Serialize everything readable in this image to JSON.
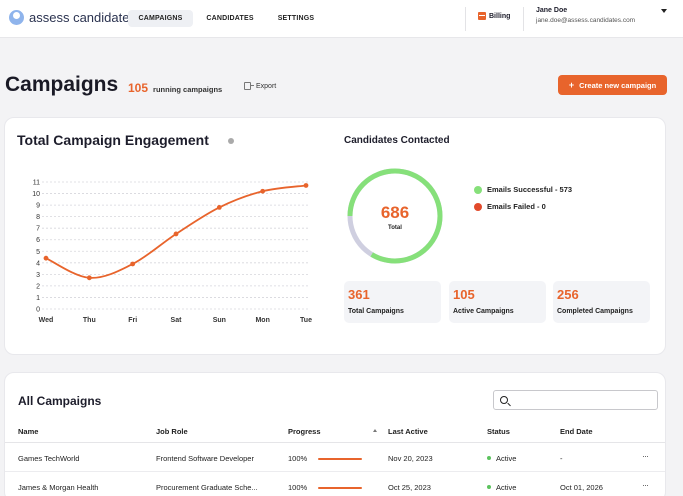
{
  "app": {
    "name": "assess candidates"
  },
  "nav": {
    "tabs": [
      {
        "label": "CAMPAIGNS",
        "active": true
      },
      {
        "label": "CANDIDATES",
        "active": false
      },
      {
        "label": "SETTINGS",
        "active": false
      }
    ],
    "billing": "Billing",
    "user": {
      "name": "Jane Doe",
      "email": "jane.doe@assess.candidates.com"
    }
  },
  "header": {
    "title": "Campaigns",
    "running_count": "105",
    "running_label": "running campaigns",
    "export_label": "Export",
    "create_label": "Create new campaign"
  },
  "engagement": {
    "title": "Total Campaign Engagement",
    "chart_data": {
      "type": "line",
      "categories": [
        "Wed",
        "Thu",
        "Fri",
        "Sat",
        "Sun",
        "Mon",
        "Tue"
      ],
      "values": [
        4.4,
        2.7,
        3.9,
        6.5,
        8.8,
        10.2,
        10.7
      ],
      "yticks": [
        "0",
        "1",
        "2",
        "3",
        "4",
        "5",
        "6",
        "7",
        "8",
        "9",
        "10",
        "11"
      ],
      "ylim": [
        0,
        11
      ],
      "grid": true,
      "color": "#e8642c"
    }
  },
  "contacted": {
    "title": "Candidates Contacted",
    "total_value": "686",
    "total_label": "Total",
    "chart_data": {
      "type": "pie",
      "labels": [
        "Emails Successful",
        "Emails Failed"
      ],
      "values": [
        573,
        0
      ],
      "total": 686,
      "colors": [
        "#86e07a",
        "#e24a2b",
        "#cfcfe0"
      ]
    },
    "legend": [
      {
        "text": "Emails Successful - 573",
        "color": "#86e07a"
      },
      {
        "text": "Emails Failed - 0",
        "color": "#e24a2b"
      }
    ]
  },
  "stats": [
    {
      "value": "361",
      "label": "Total Campaigns"
    },
    {
      "value": "105",
      "label": "Active Campaigns"
    },
    {
      "value": "256",
      "label": "Completed Campaigns"
    }
  ],
  "table": {
    "title": "All Campaigns",
    "search_placeholder": "",
    "columns": [
      "Name",
      "Job Role",
      "Progress",
      "Last Active",
      "Status",
      "End Date"
    ],
    "rows": [
      {
        "name": "Games TechWorld",
        "role": "Frontend Software Developer",
        "progress": "100%",
        "progress_value": 1.0,
        "last_active": "Nov 20, 2023",
        "status": "Active",
        "end_date": "-",
        "menu": "···"
      },
      {
        "name": "James & Morgan Health",
        "role": "Procurement Graduate Sche...",
        "progress": "100%",
        "progress_value": 1.0,
        "last_active": "Oct 25, 2023",
        "status": "Active",
        "end_date": "Oct 01, 2026",
        "menu": "···"
      }
    ]
  }
}
